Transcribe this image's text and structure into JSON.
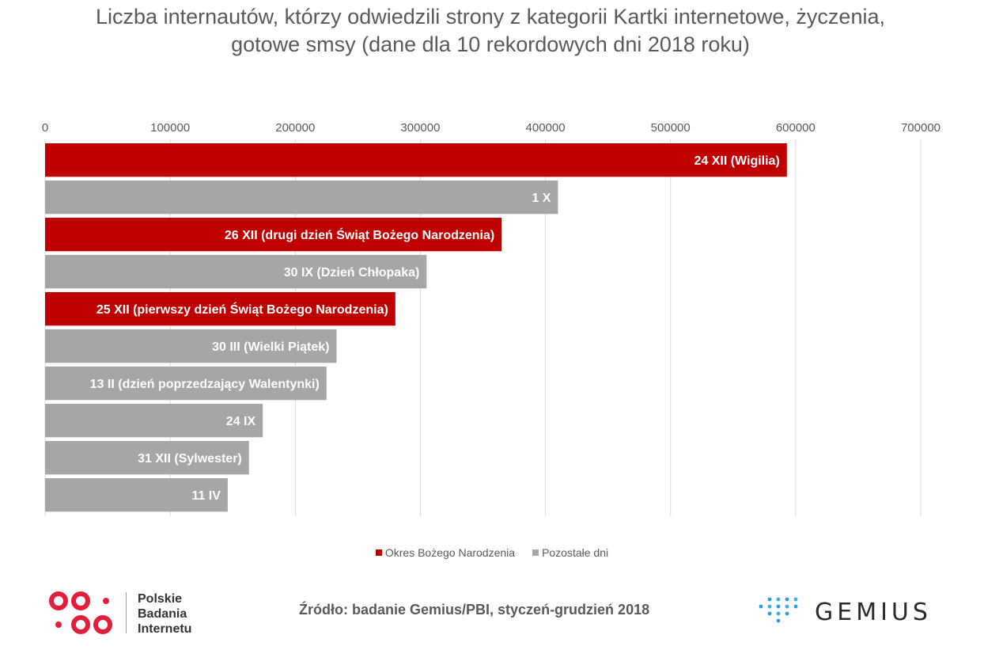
{
  "chart_data": {
    "type": "bar",
    "orientation": "horizontal",
    "title": "Liczba internautów, którzy odwiedzili strony z kategorii Kartki internetowe, życzenia, gotowe smsy (dane dla 10 rekordowych dni 2018 roku)",
    "xlim": [
      0,
      700000
    ],
    "x_ticks": [
      "0",
      "100000",
      "200000",
      "300000",
      "400000",
      "500000",
      "600000",
      "700000"
    ],
    "axis_position": "top",
    "grid": true,
    "legend_position": "bottom",
    "categories": [
      "24 XII (Wigilia)",
      "1 X",
      "26 XII (drugi dzień Świąt Bożego Narodzenia)",
      "30 IX (Dzień Chłopaka)",
      "25 XII (pierwszy dzień Świąt Bożego Narodzenia)",
      "30 III (Wielki Piątek)",
      "13 II (dzień poprzedzający Walentynki)",
      "24 IX",
      "31 XII (Sylwester)",
      "11 IV"
    ],
    "values": [
      593000,
      410000,
      365000,
      305000,
      280000,
      233000,
      225000,
      174000,
      163000,
      146000
    ],
    "groups": [
      "christmas",
      "other",
      "christmas",
      "other",
      "christmas",
      "other",
      "other",
      "other",
      "other",
      "other"
    ],
    "series": [
      {
        "key": "christmas",
        "name": "Okres Bożego Narodzenia",
        "color": "#c00000"
      },
      {
        "key": "other",
        "name": "Pozostałe dni",
        "color": "#a6a6a6"
      }
    ]
  },
  "source": "Źródło: badanie Gemius/PBI, styczeń-grudzień 2018",
  "logos": {
    "pbi": {
      "line1": "Polskie",
      "line2": "Badania",
      "line3": "Internetu",
      "color": "#e31e3b"
    },
    "gemius": {
      "text": "GEMIUS",
      "color": "#2b9de0"
    }
  }
}
